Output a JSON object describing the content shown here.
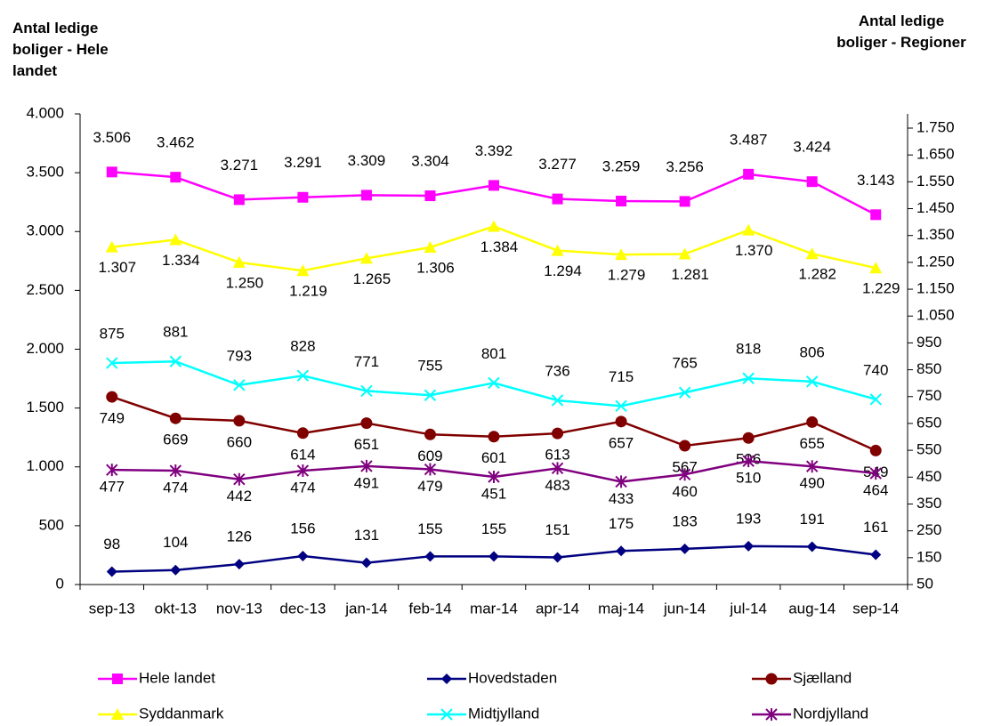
{
  "chart_data": {
    "type": "line",
    "y_label": "Antal ledige boliger - Hele landet",
    "y2_label": "Antal ledige boliger - Regioner",
    "categories": [
      "sep-13",
      "okt-13",
      "nov-13",
      "dec-13",
      "jan-14",
      "feb-14",
      "mar-14",
      "apr-14",
      "maj-14",
      "jun-14",
      "jul-14",
      "aug-14",
      "sep-14"
    ],
    "ylim": [
      0,
      4000
    ],
    "yticks": [
      0,
      500,
      {
        "value": 1000,
        "label": "1.000"
      },
      {
        "value": 1500,
        "label": "1.500"
      },
      {
        "value": 2000,
        "label": "2.000"
      },
      {
        "value": 2500,
        "label": "2.500"
      },
      {
        "value": 3000,
        "label": "3.000"
      },
      {
        "value": 3500,
        "label": "3.500"
      },
      {
        "value": 4000,
        "label": "4.000"
      }
    ],
    "y2lim": [
      50,
      1803
    ],
    "y2ticks": [
      50,
      150,
      250,
      350,
      450,
      550,
      650,
      750,
      850,
      950,
      {
        "value": 1050,
        "label": "1.050"
      },
      {
        "value": 1150,
        "label": "1.150"
      },
      {
        "value": 1250,
        "label": "1.250"
      },
      {
        "value": 1350,
        "label": "1.350"
      },
      {
        "value": 1450,
        "label": "1.450"
      },
      {
        "value": 1550,
        "label": "1.550"
      },
      {
        "value": 1650,
        "label": "1.650"
      },
      {
        "value": 1750,
        "label": "1.750"
      }
    ],
    "series": [
      {
        "name": "Hele landet",
        "color": "#ff00ff",
        "marker": "square",
        "axis": "y",
        "values": [
          3506,
          3462,
          3271,
          3291,
          3309,
          3304,
          3392,
          3277,
          3259,
          3256,
          3487,
          3424,
          3143
        ],
        "value_labels": [
          "3.506",
          "3.462",
          "3.271",
          "3.291",
          "3.309",
          "3.304",
          "3.392",
          "3.277",
          "3.259",
          "3.256",
          "3.487",
          "3.424",
          "3.143"
        ]
      },
      {
        "name": "Hovedstaden",
        "color": "#000080",
        "marker": "diamond",
        "axis": "y2",
        "values": [
          98,
          104,
          126,
          156,
          131,
          155,
          155,
          151,
          175,
          183,
          193,
          191,
          161
        ]
      },
      {
        "name": "Sjælland",
        "color": "#800000",
        "marker": "circle",
        "axis": "y2",
        "values": [
          749,
          669,
          660,
          614,
          651,
          609,
          601,
          613,
          657,
          567,
          596,
          655,
          549
        ]
      },
      {
        "name": "Syddanmark",
        "color": "#ffff00",
        "marker": "triangle",
        "axis": "y2",
        "values": [
          1307,
          1334,
          1250,
          1219,
          1265,
          1306,
          1384,
          1294,
          1279,
          1281,
          1370,
          1282,
          1229
        ],
        "value_labels": [
          "1.307",
          "1.334",
          "1.250",
          "1.219",
          "1.265",
          "1.306",
          "1.384",
          "1.294",
          "1.279",
          "1.281",
          "1.370",
          "1.282",
          "1.229"
        ]
      },
      {
        "name": "Midtjylland",
        "color": "#00ffff",
        "marker": "x",
        "axis": "y2",
        "values": [
          875,
          881,
          793,
          828,
          771,
          755,
          801,
          736,
          715,
          765,
          818,
          806,
          740
        ]
      },
      {
        "name": "Nordjylland",
        "color": "#800080",
        "marker": "star",
        "axis": "y2",
        "values": [
          477,
          474,
          442,
          474,
          491,
          479,
          451,
          483,
          433,
          460,
          510,
          490,
          464
        ]
      }
    ]
  }
}
